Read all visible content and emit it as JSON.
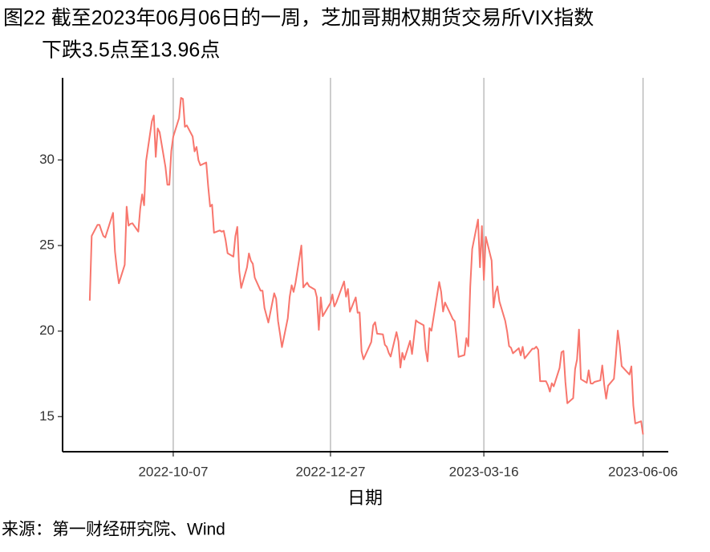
{
  "chart_data": {
    "type": "line",
    "title": [
      "图22  截至2023年06月06日的一周，芝加哥期权期货交易所VIX指数",
      "下跌3.5点至13.96点"
    ],
    "x_label": "日期",
    "source": "来源：第一财经研究院、Wind",
    "color": "#f8766d",
    "grid": "x",
    "x": [
      "2022-08-25",
      "2022-08-26",
      "2022-08-29",
      "2022-08-30",
      "2022-08-31",
      "2022-09-01",
      "2022-09-02",
      "2022-09-06",
      "2022-09-07",
      "2022-09-08",
      "2022-09-09",
      "2022-09-12",
      "2022-09-13",
      "2022-09-14",
      "2022-09-15",
      "2022-09-16",
      "2022-09-19",
      "2022-09-20",
      "2022-09-21",
      "2022-09-22",
      "2022-09-23",
      "2022-09-26",
      "2022-09-27",
      "2022-09-28",
      "2022-09-29",
      "2022-09-30",
      "2022-10-03",
      "2022-10-04",
      "2022-10-05",
      "2022-10-06",
      "2022-10-07",
      "2022-10-10",
      "2022-10-11",
      "2022-10-12",
      "2022-10-13",
      "2022-10-14",
      "2022-10-17",
      "2022-10-18",
      "2022-10-19",
      "2022-10-20",
      "2022-10-21",
      "2022-10-24",
      "2022-10-25",
      "2022-10-26",
      "2022-10-27",
      "2022-10-28",
      "2022-10-31",
      "2022-11-01",
      "2022-11-02",
      "2022-11-03",
      "2022-11-04",
      "2022-11-07",
      "2022-11-08",
      "2022-11-09",
      "2022-11-10",
      "2022-11-11",
      "2022-11-14",
      "2022-11-15",
      "2022-11-16",
      "2022-11-17",
      "2022-11-18",
      "2022-11-21",
      "2022-11-22",
      "2022-11-23",
      "2022-11-25",
      "2022-11-28",
      "2022-11-29",
      "2022-11-30",
      "2022-12-01",
      "2022-12-02",
      "2022-12-05",
      "2022-12-06",
      "2022-12-07",
      "2022-12-08",
      "2022-12-09",
      "2022-12-12",
      "2022-12-13",
      "2022-12-14",
      "2022-12-15",
      "2022-12-16",
      "2022-12-19",
      "2022-12-20",
      "2022-12-21",
      "2022-12-22",
      "2022-12-23",
      "2022-12-27",
      "2022-12-28",
      "2022-12-29",
      "2022-12-30",
      "2023-01-03",
      "2023-01-04",
      "2023-01-05",
      "2023-01-06",
      "2023-01-09",
      "2023-01-10",
      "2023-01-11",
      "2023-01-12",
      "2023-01-13",
      "2023-01-17",
      "2023-01-18",
      "2023-01-19",
      "2023-01-20",
      "2023-01-23",
      "2023-01-24",
      "2023-01-25",
      "2023-01-26",
      "2023-01-27",
      "2023-01-30",
      "2023-01-31",
      "2023-02-01",
      "2023-02-02",
      "2023-02-03",
      "2023-02-06",
      "2023-02-07",
      "2023-02-08",
      "2023-02-09",
      "2023-02-10",
      "2023-02-13",
      "2023-02-14",
      "2023-02-15",
      "2023-02-16",
      "2023-02-17",
      "2023-02-21",
      "2023-02-22",
      "2023-02-23",
      "2023-02-24",
      "2023-02-27",
      "2023-02-28",
      "2023-03-01",
      "2023-03-02",
      "2023-03-03",
      "2023-03-06",
      "2023-03-07",
      "2023-03-08",
      "2023-03-09",
      "2023-03-10",
      "2023-03-13",
      "2023-03-14",
      "2023-03-15",
      "2023-03-16",
      "2023-03-17",
      "2023-03-20",
      "2023-03-21",
      "2023-03-22",
      "2023-03-23",
      "2023-03-24",
      "2023-03-27",
      "2023-03-28",
      "2023-03-29",
      "2023-03-30",
      "2023-03-31",
      "2023-04-03",
      "2023-04-04",
      "2023-04-05",
      "2023-04-06",
      "2023-04-10",
      "2023-04-11",
      "2023-04-12",
      "2023-04-13",
      "2023-04-14",
      "2023-04-17",
      "2023-04-18",
      "2023-04-19",
      "2023-04-20",
      "2023-04-21",
      "2023-04-24",
      "2023-04-25",
      "2023-04-26",
      "2023-04-27",
      "2023-04-28",
      "2023-05-01",
      "2023-05-02",
      "2023-05-03",
      "2023-05-04",
      "2023-05-05",
      "2023-05-08",
      "2023-05-09",
      "2023-05-10",
      "2023-05-11",
      "2023-05-12",
      "2023-05-15",
      "2023-05-16",
      "2023-05-17",
      "2023-05-18",
      "2023-05-19",
      "2023-05-22",
      "2023-05-23",
      "2023-05-24",
      "2023-05-25",
      "2023-05-26",
      "2023-05-30",
      "2023-05-31",
      "2023-06-01",
      "2023-06-02",
      "2023-06-05",
      "2023-06-06"
    ],
    "values": [
      21.78,
      25.56,
      26.21,
      26.21,
      25.87,
      25.56,
      25.47,
      26.91,
      24.64,
      23.61,
      22.79,
      23.87,
      27.27,
      26.16,
      26.27,
      26.3,
      25.81,
      27.16,
      27.99,
      27.35,
      29.92,
      32.26,
      32.6,
      30.18,
      31.84,
      31.62,
      29.59,
      28.55,
      28.55,
      30.52,
      31.36,
      32.45,
      33.63,
      33.57,
      31.94,
      32.02,
      31.37,
      30.5,
      30.76,
      29.98,
      29.69,
      29.85,
      28.46,
      27.28,
      27.39,
      25.75,
      25.88,
      25.81,
      25.86,
      25.3,
      24.55,
      24.35,
      25.54,
      26.09,
      23.53,
      22.52,
      23.73,
      24.54,
      24.11,
      23.93,
      23.12,
      22.36,
      22.36,
      21.35,
      20.5,
      22.21,
      21.89,
      20.58,
      19.84,
      19.06,
      20.75,
      22.01,
      22.68,
      22.29,
      22.83,
      25.0,
      22.55,
      22.7,
      22.83,
      22.62,
      22.42,
      21.97,
      20.07,
      21.97,
      20.87,
      21.65,
      22.14,
      21.44,
      21.67,
      22.9,
      22.01,
      22.46,
      21.13,
      21.97,
      21.07,
      21.09,
      18.83,
      18.35,
      19.36,
      20.34,
      20.52,
      19.85,
      19.81,
      19.2,
      19.08,
      18.73,
      18.51,
      19.94,
      19.4,
      17.87,
      18.73,
      18.33,
      19.43,
      18.66,
      19.63,
      20.63,
      20.53,
      20.34,
      18.91,
      18.23,
      20.17,
      20.02,
      22.87,
      22.29,
      21.14,
      21.67,
      20.95,
      20.7,
      20.58,
      19.59,
      18.49,
      18.6,
      19.59,
      19.11,
      22.61,
      24.8,
      26.52,
      23.73,
      26.14,
      22.99,
      25.51,
      24.12,
      21.38,
      22.26,
      22.61,
      21.74,
      20.6,
      19.97,
      19.12,
      19.02,
      18.7,
      19.0,
      18.58,
      19.08,
      18.4,
      18.97,
      18.97,
      19.09,
      18.91,
      17.07,
      17.07,
      16.83,
      16.46,
      16.95,
      16.77,
      17.84,
      18.76,
      18.84,
      17.03,
      15.78,
      16.08,
      17.78,
      18.34,
      20.09,
      17.19,
      16.98,
      17.71,
      16.94,
      16.93,
      17.03,
      17.12,
      17.99,
      16.87,
      16.05,
      16.81,
      17.21,
      18.53,
      20.03,
      19.14,
      17.95,
      17.46,
      17.94,
      15.65,
      14.6,
      14.73,
      13.96
    ],
    "xlim": [
      "2022-08-11",
      "2023-06-19"
    ],
    "xticks": [
      "2022-10-07",
      "2022-12-27",
      "2023-03-16",
      "2023-06-06"
    ],
    "ylim": [
      12.95,
      34.8
    ],
    "yticks": [
      15,
      20,
      25,
      30
    ]
  }
}
